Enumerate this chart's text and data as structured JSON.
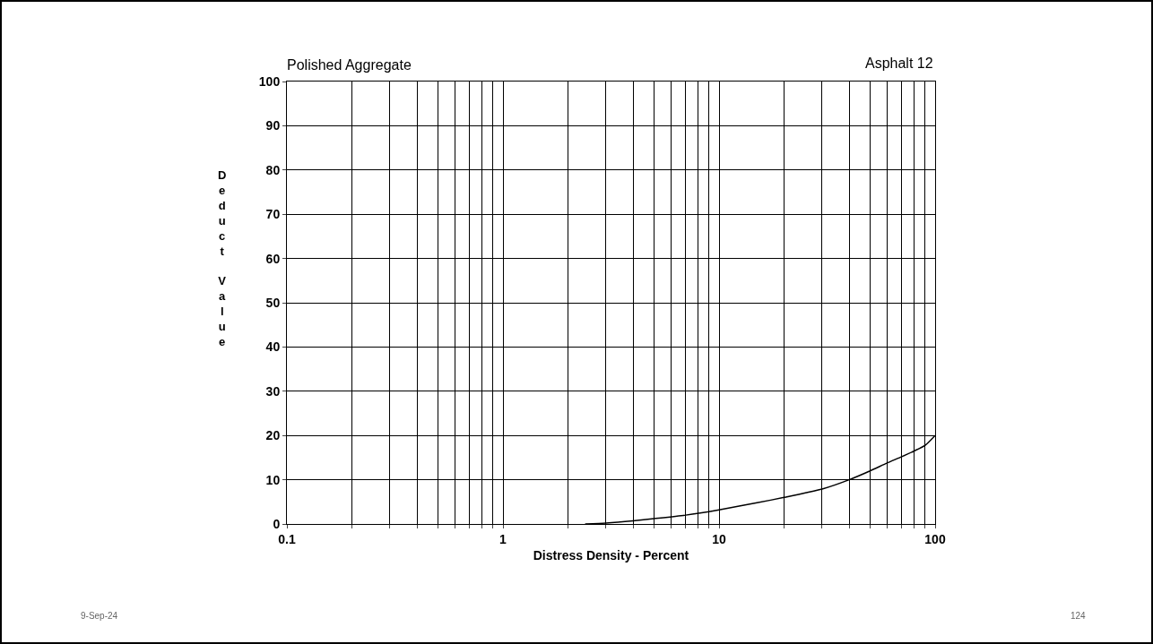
{
  "chart_data": {
    "type": "line",
    "title": "Polished Aggregate",
    "xlabel": "Distress Density - Percent",
    "ylabel": "Deduct Value",
    "annotations": [
      "Asphalt 12",
      "9-Sep-24",
      "124"
    ],
    "x": [
      2.4,
      3,
      4,
      5,
      7,
      10,
      15,
      20,
      30,
      40,
      50,
      60,
      70,
      80,
      90,
      100
    ],
    "series": [
      {
        "color": "#000000",
        "values": [
          0,
          0.2,
          0.7,
          1.2,
          2,
          3.2,
          4.8,
          6,
          7.9,
          10,
          12,
          13.8,
          15.2,
          16.5,
          17.8,
          20
        ]
      }
    ],
    "log": "x",
    "xlim": [
      0.1,
      100
    ],
    "xticks": [
      0.1,
      {
        "value": 0.2,
        "label": null
      },
      {
        "value": 0.3,
        "label": null
      },
      {
        "value": 0.4,
        "label": null
      },
      {
        "value": 0.5,
        "label": null
      },
      {
        "value": 0.6,
        "label": null
      },
      {
        "value": 0.7,
        "label": null
      },
      {
        "value": 0.8,
        "label": null
      },
      {
        "value": 0.9,
        "label": null
      },
      1,
      {
        "value": 2,
        "label": null
      },
      {
        "value": 3,
        "label": null
      },
      {
        "value": 4,
        "label": null
      },
      {
        "value": 5,
        "label": null
      },
      {
        "value": 6,
        "label": null
      },
      {
        "value": 7,
        "label": null
      },
      {
        "value": 8,
        "label": null
      },
      {
        "value": 9,
        "label": null
      },
      10,
      {
        "value": 20,
        "label": null
      },
      {
        "value": 30,
        "label": null
      },
      {
        "value": 40,
        "label": null
      },
      {
        "value": 50,
        "label": null
      },
      {
        "value": 60,
        "label": null
      },
      {
        "value": 70,
        "label": null
      },
      {
        "value": 80,
        "label": null
      },
      {
        "value": 90,
        "label": null
      },
      100
    ],
    "ylim": [
      0,
      100
    ],
    "yticks": [
      0,
      10,
      20,
      30,
      40,
      50,
      60,
      70,
      80,
      90,
      100
    ],
    "grid": true,
    "marker": "none",
    "line_style": "solid"
  }
}
